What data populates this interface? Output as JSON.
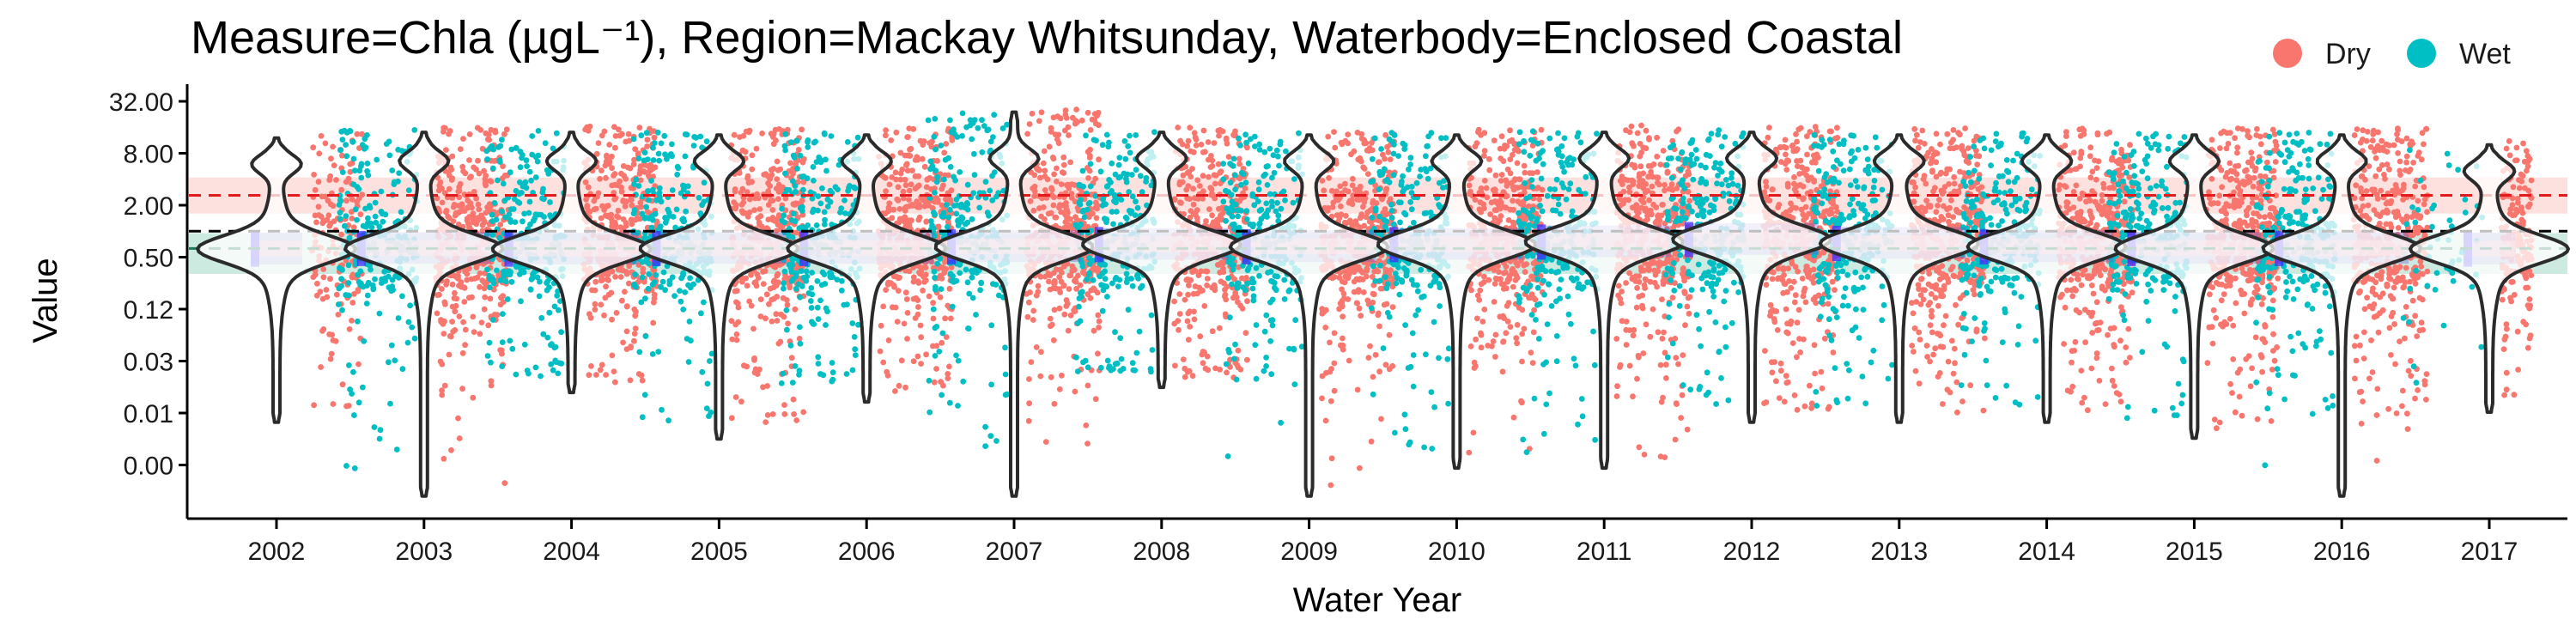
{
  "chart_data": {
    "type": "violin-scatter",
    "title": "Measure=Chla (µgL⁻¹), Region=Mackay Whitsunday, Waterbody=Enclosed Coastal",
    "xlabel": "Water Year",
    "ylabel": "Value",
    "y_scale": "log2",
    "categories": [
      "2002",
      "2003",
      "2004",
      "2005",
      "2006",
      "2007",
      "2008",
      "2009",
      "2010",
      "2011",
      "2012",
      "2013",
      "2014",
      "2015",
      "2016",
      "2017"
    ],
    "y_ticks": [
      32,
      8,
      2,
      0.5,
      0.125,
      0.03125,
      0.0078125,
      0.00195
    ],
    "y_tick_labels": [
      "32.00",
      "8.00",
      "2.00",
      "0.50",
      "0.12",
      "0.03",
      "0.01",
      "0.00"
    ],
    "ylim": [
      0.0008,
      48
    ],
    "legend": {
      "position": "top-right",
      "entries": [
        {
          "label": "Dry",
          "color": "#F8766D"
        },
        {
          "label": "Wet",
          "color": "#00BFC4"
        }
      ]
    },
    "reference_lines": [
      {
        "value": 2.6,
        "color": "#E41A1C",
        "style": "dashed"
      },
      {
        "value": 1.0,
        "color": "#000000",
        "style": "dashed"
      },
      {
        "value": 0.63,
        "color": "#1B7A52",
        "style": "dashed"
      }
    ],
    "reference_bands": [
      {
        "low": 1.6,
        "high": 4.2,
        "color": "#F8766D"
      },
      {
        "low": 0.32,
        "high": 0.95,
        "color": "#1B9E77"
      }
    ],
    "violins": [
      {
        "year": "2002",
        "min": 0.0061,
        "max": 12,
        "median": 0.62,
        "upper_mode": 6.0
      },
      {
        "year": "2003",
        "min": 0.00085,
        "max": 14,
        "median": 0.63,
        "upper_mode": 6.5
      },
      {
        "year": "2004",
        "min": 0.0135,
        "max": 14,
        "median": 0.62,
        "upper_mode": 6.5
      },
      {
        "year": "2005",
        "min": 0.0039,
        "max": 13,
        "median": 0.63,
        "upper_mode": 6.5
      },
      {
        "year": "2006",
        "min": 0.0105,
        "max": 13,
        "median": 0.63,
        "upper_mode": 6.5
      },
      {
        "year": "2007",
        "min": 0.00085,
        "max": 24,
        "median": 0.66,
        "upper_mode": 7.0
      },
      {
        "year": "2008",
        "min": 0.0155,
        "max": 14,
        "median": 0.7,
        "upper_mode": 7.0
      },
      {
        "year": "2009",
        "min": 0.00085,
        "max": 13,
        "median": 0.66,
        "upper_mode": 6.5
      },
      {
        "year": "2010",
        "min": 0.0018,
        "max": 13,
        "median": 0.7,
        "upper_mode": 6.5
      },
      {
        "year": "2011",
        "min": 0.0018,
        "max": 14,
        "median": 0.75,
        "upper_mode": 7.0
      },
      {
        "year": "2012",
        "min": 0.0061,
        "max": 14,
        "median": 0.8,
        "upper_mode": 7.0
      },
      {
        "year": "2013",
        "min": 0.0061,
        "max": 13,
        "median": 0.72,
        "upper_mode": 6.5
      },
      {
        "year": "2014",
        "min": 0.0061,
        "max": 13,
        "median": 0.66,
        "upper_mode": 6.5
      },
      {
        "year": "2015",
        "min": 0.004,
        "max": 13,
        "median": 0.63,
        "upper_mode": 6.5
      },
      {
        "year": "2016",
        "min": 0.00085,
        "max": 13,
        "median": 0.63,
        "upper_mode": 6.5
      },
      {
        "year": "2017",
        "min": 0.008,
        "max": 10,
        "median": 0.62,
        "upper_mode": 5.0
      }
    ],
    "series": [
      {
        "name": "Dry",
        "color": "#F8766D",
        "value_range": [
          0.001,
          26
        ]
      },
      {
        "name": "Wet",
        "color": "#00BFC4",
        "value_range": [
          0.002,
          20
        ]
      }
    ]
  }
}
